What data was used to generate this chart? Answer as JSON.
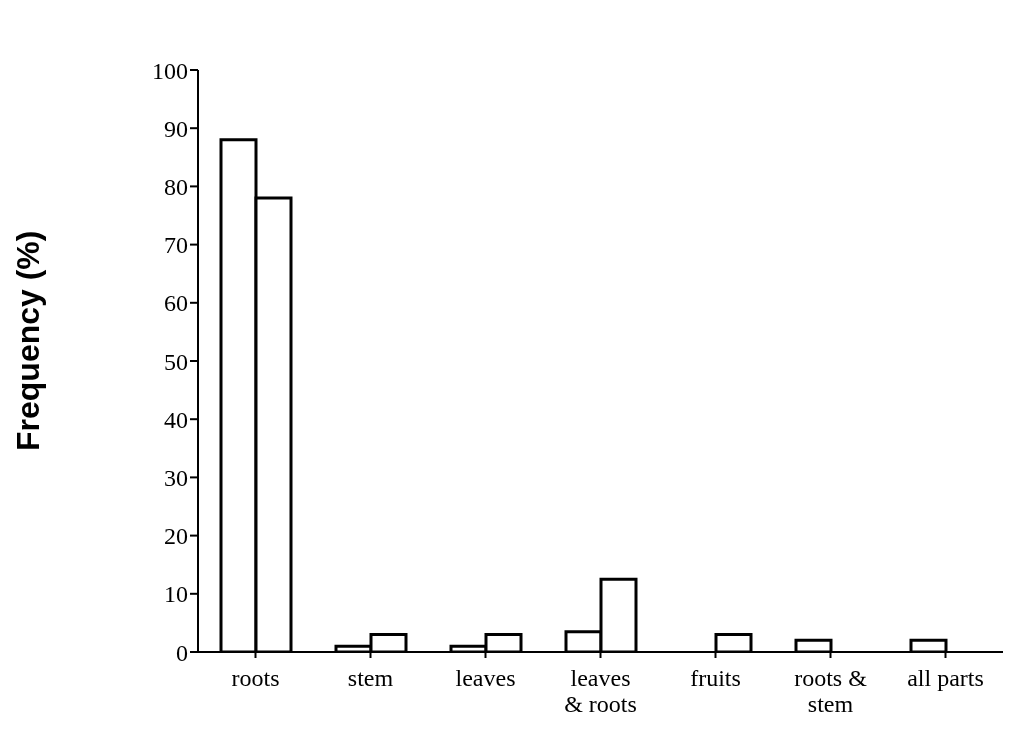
{
  "chart_data": {
    "type": "bar",
    "ylabel": "Frequency (%)",
    "categories": [
      "roots",
      "stem",
      "leaves",
      "leaves\n& roots",
      "fruits",
      "roots &\nstem",
      "all parts"
    ],
    "series": [
      {
        "color": "#ffffff",
        "values": [
          88,
          1,
          1,
          3.5,
          0,
          2,
          2
        ]
      },
      {
        "color": "#ffffff",
        "values": [
          78,
          3,
          3,
          12.5,
          3,
          0,
          0
        ]
      }
    ],
    "ylim": [
      0,
      100
    ],
    "yticks": [
      0,
      10,
      20,
      30,
      40,
      50,
      60,
      70,
      80,
      90,
      100
    ],
    "grid": false,
    "legend": false
  }
}
